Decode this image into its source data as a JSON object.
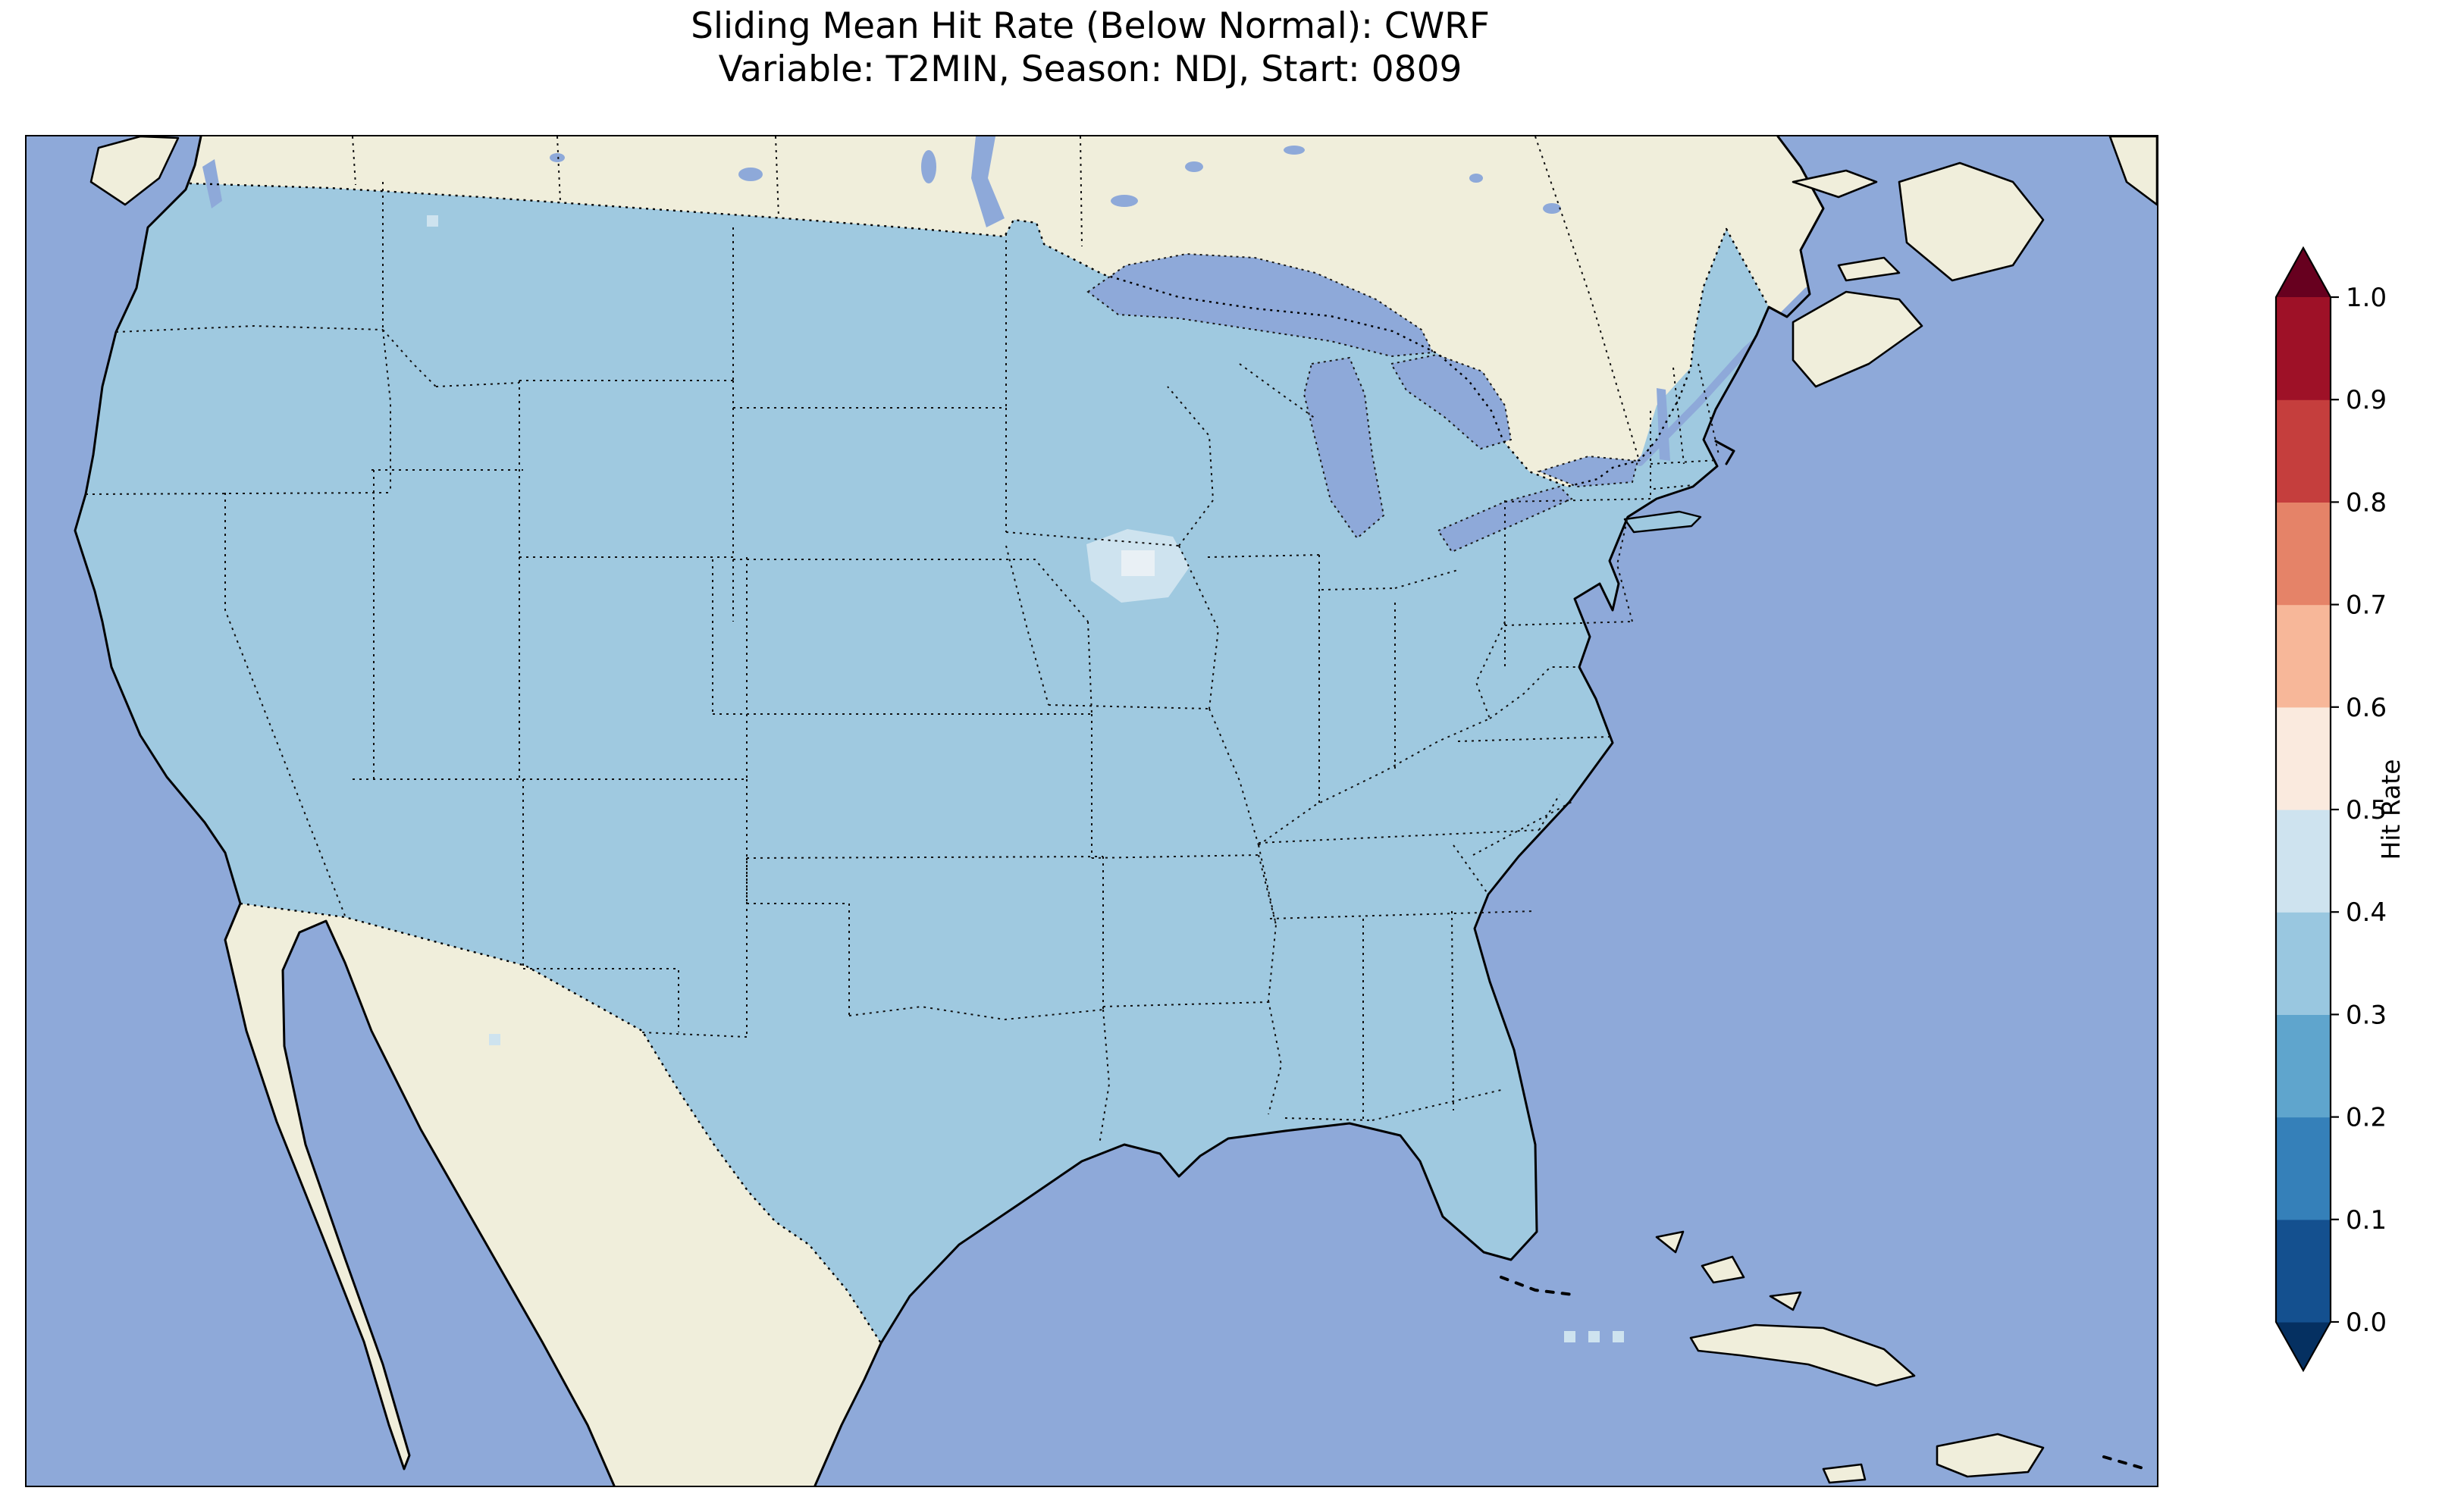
{
  "figure": {
    "title_line1": "Sliding Mean Hit Rate (Below Normal): CWRF",
    "title_line2": "Variable: T2MIN, Season: NDJ, Start: 0809"
  },
  "colorbar": {
    "label": "Hit Rate",
    "ticks": [
      "0.0",
      "0.1",
      "0.2",
      "0.3",
      "0.4",
      "0.5",
      "0.6",
      "0.7",
      "0.8",
      "0.9",
      "1.0"
    ],
    "under_color": "#053061",
    "over_color": "#67001f",
    "band_colors_bottom_to_top": [
      "#14508f",
      "#3580b9",
      "#5fa5cd",
      "#99c7e0",
      "#cee3ef",
      "#faeade",
      "#f7b799",
      "#e58368",
      "#c53e3d",
      "#9e1127"
    ]
  },
  "colors": {
    "background": "#ffffff",
    "ocean": "#8ea9d9",
    "land": "#f0eedb",
    "conus_fill": "#9fc9e0",
    "patch_light": "#cee3ef",
    "patch_lighter": "#e9f0f5"
  },
  "chart_data": {
    "type": "heatmap",
    "title": "Sliding Mean Hit Rate (Below Normal): CWRF",
    "subtitle": "Variable: T2MIN, Season: NDJ, Start: 0809",
    "metric": "Sliding Mean Hit Rate (Below Normal)",
    "model": "CWRF",
    "variable": "T2MIN",
    "season": "NDJ",
    "start": "0809",
    "region": "Continental United States (map with Canada, Mexico, Caribbean context)",
    "colorbar_label": "Hit Rate",
    "colorbar_ticks": [
      0.0,
      0.1,
      0.2,
      0.3,
      0.4,
      0.5,
      0.6,
      0.7,
      0.8,
      0.9,
      1.0
    ],
    "colorbar_range": [
      0.0,
      1.0
    ],
    "colorbar_extended_both_ends": true,
    "legend_position": "right",
    "values_summary": {
      "conus_dominant_hit_rate_bin": [
        0.3,
        0.4
      ],
      "anomaly_regions": [
        {
          "area": "southern Minnesota / northern Iowa patch",
          "hit_rate_bin": [
            0.4,
            0.5
          ]
        },
        {
          "area": "small core inside that patch",
          "hit_rate_bin": [
            0.5,
            0.6
          ]
        },
        {
          "area": "scattered coastal cells (south Florida, Texas border)",
          "hit_rate_bin": [
            0.4,
            0.5
          ]
        }
      ]
    }
  }
}
